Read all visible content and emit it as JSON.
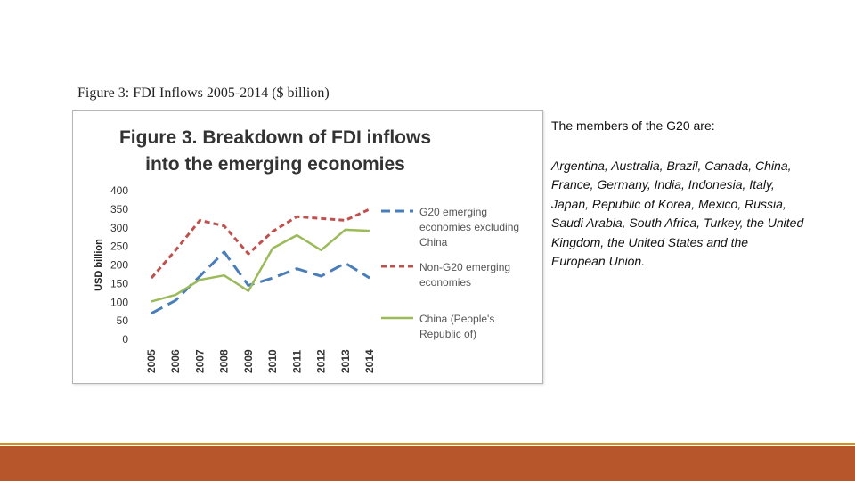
{
  "caption": "Figure 3: FDI Inflows 2005-2014 ($ billion)",
  "chart_data": {
    "type": "line",
    "title": [
      "Figure 3. Breakdown of FDI inflows",
      "into the emerging economies"
    ],
    "ylabel": "USD billion",
    "xlabel": "",
    "ylim": [
      0,
      400
    ],
    "yticks": [
      0,
      50,
      100,
      150,
      200,
      250,
      300,
      350,
      400
    ],
    "categories": [
      "2005",
      "2006",
      "2007",
      "2008",
      "2009",
      "2010",
      "2011",
      "2012",
      "2013",
      "2014"
    ],
    "legend_position": "right",
    "series": [
      {
        "name": [
          "G20 emerging",
          "economies excluding",
          "China"
        ],
        "color": "#4a7ebb",
        "dash": "long-dash",
        "values": [
          70,
          105,
          170,
          235,
          145,
          165,
          190,
          170,
          205,
          165
        ]
      },
      {
        "name": [
          "Non-G20 emerging",
          "economies"
        ],
        "color": "#c0504d",
        "dash": "short-dash",
        "values": [
          165,
          240,
          320,
          305,
          230,
          290,
          330,
          325,
          320,
          350
        ]
      },
      {
        "name": [
          "China (People's",
          "Republic of)"
        ],
        "color": "#9bbb59",
        "dash": "solid",
        "values": [
          102,
          120,
          160,
          172,
          130,
          245,
          280,
          240,
          295,
          292
        ]
      }
    ]
  },
  "members": {
    "heading": "The members of the G20 are:",
    "list": "Argentina, Australia, Brazil, Canada, China, France, Germany, India, Indonesia, Italy, Japan, Republic of Korea, Mexico, Russia, Saudi Arabia, South Africa, Turkey, the United Kingdom, the United States and the European Union."
  },
  "colors": {
    "footer_line": "#d98e1c",
    "footer_bar": "#b8562b"
  }
}
